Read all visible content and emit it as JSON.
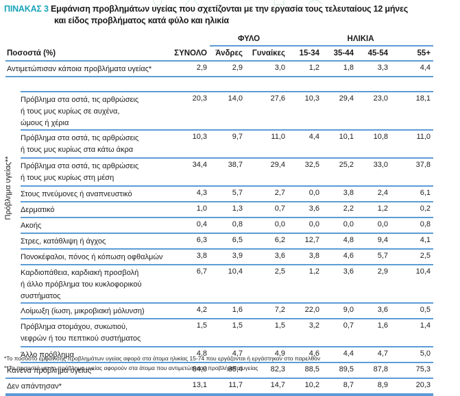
{
  "title": {
    "label": "ΠΙΝΑΚΑΣ 3",
    "line1": "Εμφάνιση προβλημάτων υγείας που σχετίζονται με την εργασία τους τελευταίους 12 μήνες",
    "line2": "και είδος προβλήματος κατά φύλο και ηλικία"
  },
  "colors": {
    "accent": "#1aa3b8",
    "rule": "#5b9bd5"
  },
  "header": {
    "group_sex": "ΦΥΛΟ",
    "group_age": "ΗΛΙΚΙΑ",
    "columns": [
      "Ποσοστά (%)",
      "ΣΥΝΟΛΟ",
      "Άνδρες",
      "Γυναίκες",
      "15-34",
      "35-44",
      "45-54",
      "55+"
    ]
  },
  "side_label": "Πρόβλημα υγείας**",
  "rows_top": [
    {
      "label": "Αντιμετώπισαν κάποια προβλήματα υγείας*",
      "values": [
        "2,9",
        "2,9",
        "3,0",
        "1,2",
        "1,8",
        "3,3",
        "4,4"
      ]
    }
  ],
  "rows_sub": [
    {
      "label": "Πρόβλημα στα οστά, τις αρθρώσεις ή τους μυς κυρίως σε αυχένα, ώμους ή χέρια",
      "values": [
        "20,3",
        "14,0",
        "27,6",
        "10,3",
        "29,4",
        "23,0",
        "18,1"
      ]
    },
    {
      "label": "Πρόβλημα στα οστά, τις αρθρώσεις ή τους μυς κυρίως στα κάτω άκρα",
      "values": [
        "10,3",
        "9,7",
        "11,0",
        "4,4",
        "10,1",
        "10,8",
        "11,0"
      ]
    },
    {
      "label": "Πρόβλημα στα οστά, τις αρθρώσεις ή τους μυς κυρίως στη μέση",
      "values": [
        "34,4",
        "38,7",
        "29,4",
        "32,5",
        "25,2",
        "33,0",
        "37,8"
      ]
    },
    {
      "label": "Στους πνεύμονες ή αναπνευστικό",
      "values": [
        "4,3",
        "5,7",
        "2,7",
        "0,0",
        "3,8",
        "2,4",
        "6,1"
      ]
    },
    {
      "label": "Δερματικό",
      "values": [
        "1,0",
        "1,3",
        "0,7",
        "3,6",
        "2,2",
        "1,2",
        "0,2"
      ]
    },
    {
      "label": "Ακοής",
      "values": [
        "0,4",
        "0,8",
        "0,0",
        "0,0",
        "0,0",
        "0,0",
        "0,8"
      ]
    },
    {
      "label": "Στρες, κατάθλιψη ή άγχος",
      "values": [
        "6,3",
        "6,5",
        "6,2",
        "12,7",
        "4,8",
        "9,4",
        "4,1"
      ]
    },
    {
      "label": "Πονοκέφαλοι, πόνος ή κόπωση οφθαλμών",
      "values": [
        "3,8",
        "3,9",
        "3,6",
        "3,8",
        "4,6",
        "5,7",
        "2,5"
      ]
    },
    {
      "label": "Καρδιοπάθεια, καρδιακή προσβολή ή άλλο πρόβλημα του κυκλοφορικού συστήματος",
      "values": [
        "6,7",
        "10,4",
        "2,5",
        "1,2",
        "3,6",
        "2,9",
        "10,4"
      ]
    },
    {
      "label": "Λοίμωξη (ίωση, μικροβιακή μόλυνση)",
      "values": [
        "4,2",
        "1,6",
        "7,2",
        "22,0",
        "9,0",
        "3,6",
        "0,5"
      ]
    },
    {
      "label": "Πρόβλημα στομάχου, συκωτιού, νεφρών ή του πεπτικού συστήματος",
      "values": [
        "1,5",
        "1,5",
        "1,5",
        "3,2",
        "0,7",
        "1,6",
        "1,4"
      ]
    },
    {
      "label": "Άλλο πρόβλημα",
      "values": [
        "4,8",
        "4,7",
        "4,9",
        "4,6",
        "4,4",
        "4,7",
        "5,0"
      ]
    }
  ],
  "rows_bottom": [
    {
      "label": "Κανένα πρόβλημα υγείας*",
      "values": [
        "84,0",
        "85,4",
        "82,3",
        "88,5",
        "89,5",
        "87,8",
        "75,3"
      ]
    },
    {
      "label": "Δεν απάντησαν*",
      "values": [
        "13,1",
        "11,7",
        "14,7",
        "10,2",
        "8,7",
        "8,9",
        "20,3"
      ]
    }
  ],
  "notes": [
    "*Το ποσοστό εμφάνισης προβλημάτων υγείας αφορά στα άτομα ηλικίας 15-74 που εργάζονται ή εργάστηκαν στο παρελθόν",
    "**Τα ποσοστά για το πρόβλημα υγείας αφορούν στα άτομα που αντιμετώπισαν προβλήματα υγείας"
  ]
}
